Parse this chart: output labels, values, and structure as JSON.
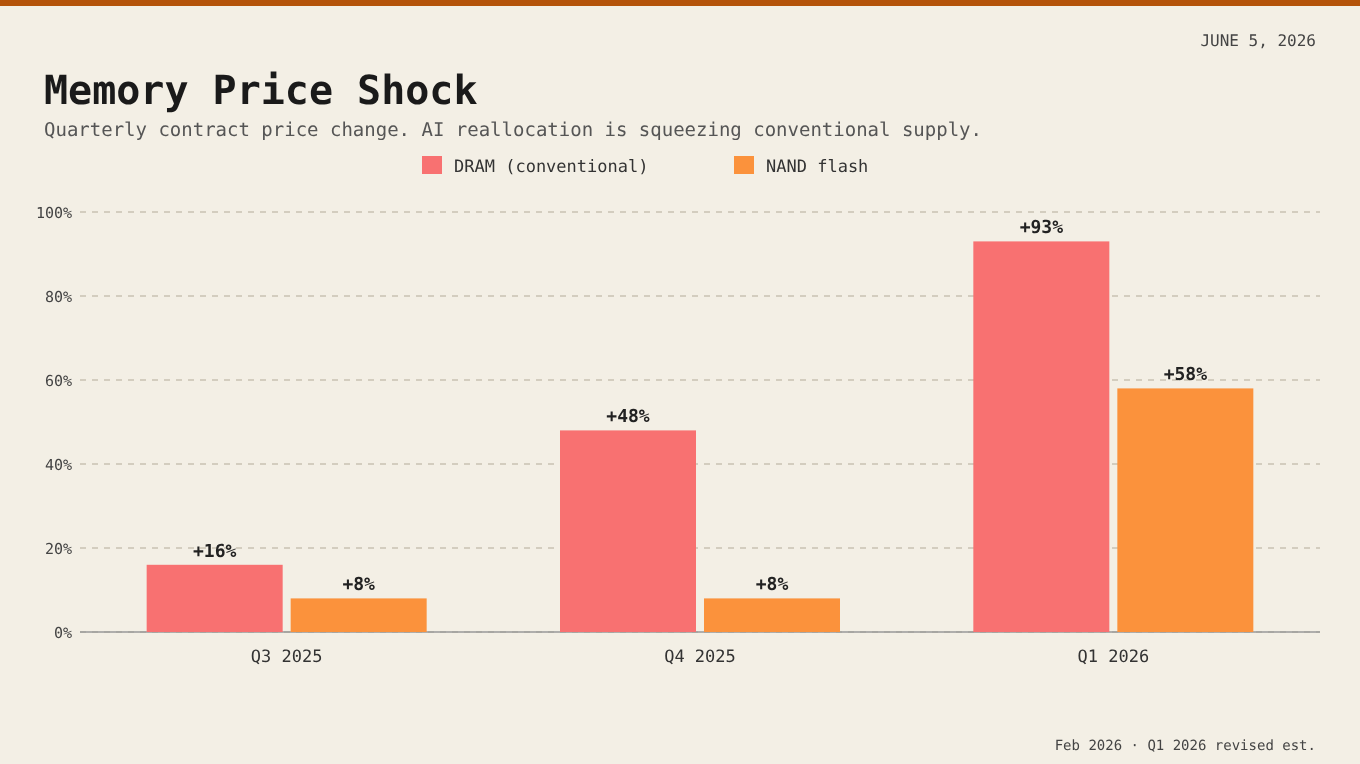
{
  "chart_data": {
    "type": "bar",
    "title": "Memory Price Shock",
    "subtitle": "Quarterly contract price change. AI reallocation is squeezing conventional supply.",
    "annotations": [
      "JUNE 5, 2026",
      "Feb 2026 · Q1 2026 revised est."
    ],
    "categories": [
      "Q3 2025",
      "Q4 2025",
      "Q1 2026"
    ],
    "series": [
      {
        "name": "DRAM (conventional)",
        "color": "#f87171",
        "values": [
          16,
          48,
          93
        ],
        "value_labels": [
          "+16%",
          "+48%",
          "+93%"
        ]
      },
      {
        "name": "NAND flash",
        "color": "#fb923c",
        "values": [
          8,
          8,
          58
        ],
        "value_labels": [
          "+8%",
          "+8%",
          "+58%"
        ]
      }
    ],
    "ylim": [
      0,
      100
    ],
    "yticks": [
      {
        "value": 0,
        "label": "0%"
      },
      {
        "value": 20,
        "label": "20%"
      },
      {
        "value": 40,
        "label": "40%"
      },
      {
        "value": 60,
        "label": "60%"
      },
      {
        "value": 80,
        "label": "80%"
      },
      {
        "value": 100,
        "label": "100%"
      }
    ],
    "grid": "y",
    "legend": "top"
  }
}
